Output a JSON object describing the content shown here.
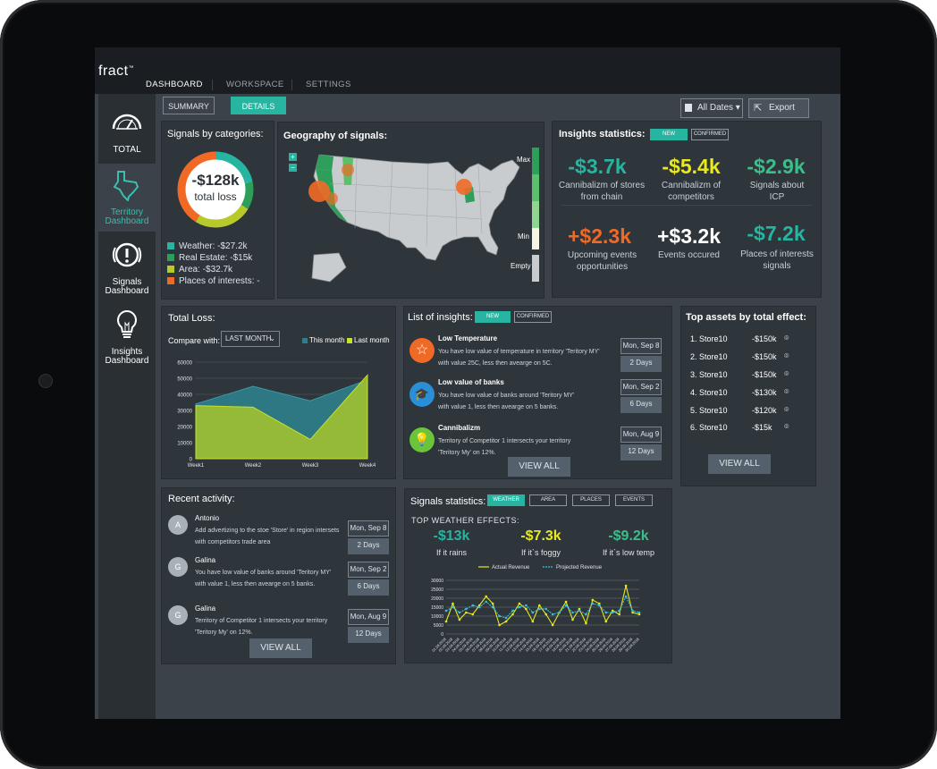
{
  "app": {
    "logo": "fract",
    "logo_tm": "™"
  },
  "top_tabs": [
    {
      "label": "DASHBOARD"
    },
    {
      "label": "WORKSPACE"
    },
    {
      "label": "SETTINGS"
    }
  ],
  "sidebar": {
    "items": [
      {
        "label": "TOTAL",
        "icon": "gauge-icon"
      },
      {
        "label": "Territory Dashboard",
        "icon": "texas-map-icon"
      },
      {
        "label": "Signals Dashboard",
        "icon": "warning-icon"
      },
      {
        "label": "Insights Dashboard",
        "icon": "lightbulb-icon"
      }
    ]
  },
  "subtabs": [
    {
      "label": "SUMMARY"
    },
    {
      "label": "DETAILS"
    }
  ],
  "toolbar": {
    "dates_label": "All Dates",
    "export_label": "Export"
  },
  "signals_by_categories": {
    "title": "Signals by categories:",
    "total_value": "-$128k",
    "total_label": "total loss",
    "legend": [
      {
        "label": "Weather: -$27.2k",
        "color": "#27b4a0"
      },
      {
        "label": "Real Estate: -$15k",
        "color": "#2e9e5b"
      },
      {
        "label": "Area: -$32.7k",
        "color": "#b8c92a"
      },
      {
        "label": "Places of interests: -",
        "color": "#f06a26"
      }
    ]
  },
  "geography": {
    "title": "Geography of signals:",
    "max_label": "Max",
    "min_label": "Min",
    "empty_label": "Empty",
    "zoom_in": "+",
    "zoom_out": "−"
  },
  "insights_statistics": {
    "title": "Insights statistics:",
    "tab_new": "NEW",
    "tab_confirmed": "CONFIRMED",
    "stats": [
      {
        "value": "-$3.7k",
        "label": "Cannibalizm of stores from chain",
        "color": "#27b4a0"
      },
      {
        "value": "-$5.4k",
        "label": "Cannibalizm of competitors",
        "color": "#e8e81e"
      },
      {
        "value": "-$2.9k",
        "label": "Signals about ICP",
        "color": "#3bbf8a"
      },
      {
        "value": "+$2.3k",
        "label": "Upcoming events opportunities",
        "color": "#f06a26"
      },
      {
        "value": "+$3.2k",
        "label": "Events occured",
        "color": "#ffffff"
      },
      {
        "value": "-$7.2k",
        "label": "Places of interests signals",
        "color": "#27b4a0"
      }
    ]
  },
  "total_loss": {
    "title": "Total Loss:",
    "compare_label": "Compare with:",
    "compare_value": "LAST MONTH",
    "legend_this": "This month",
    "legend_last": "Last month"
  },
  "chart_data": [
    {
      "type": "area",
      "categories": [
        "Week1",
        "Week2",
        "Week3",
        "Week4"
      ],
      "ylim": [
        0,
        60000
      ],
      "yticks": [
        "0",
        "10000",
        "20000",
        "30000",
        "40000",
        "50000",
        "60000"
      ],
      "series": [
        {
          "name": "This month",
          "values": [
            34000,
            45000,
            36000,
            49000
          ],
          "color": "#2e7f8c"
        },
        {
          "name": "Last month",
          "values": [
            33000,
            32000,
            12000,
            52000
          ],
          "color": "#a8c52c"
        }
      ],
      "grid": true
    },
    {
      "type": "line",
      "categories": [
        "01.09.2018",
        "02.09.2018",
        "03.09.2018",
        "04.09.2018",
        "05.09.2018",
        "06.09.2018",
        "07.09.2018",
        "08.09.2018",
        "09.09.2018",
        "10.09.2018",
        "11.09.2018",
        "12.09.2018",
        "13.09.2018",
        "14.09.2018",
        "15.09.2018",
        "16.09.2018",
        "17.09.2018",
        "18.09.2018",
        "19.09.2018",
        "20.09.2018",
        "21.09.2018",
        "22.09.2018",
        "23.09.2018",
        "24.09.2018",
        "25.09.2018",
        "26.09.2018",
        "27.09.2018",
        "28.09.2018",
        "29.09.2018",
        "30.09.2018"
      ],
      "ylim": [
        0,
        30000
      ],
      "yticks": [
        "0",
        "5000",
        "10000",
        "15000",
        "20000",
        "25000",
        "30000"
      ],
      "series": [
        {
          "name": "Actual Revenue",
          "color": "#e8e81e",
          "values": [
            7000,
            17000,
            8000,
            12000,
            11000,
            16000,
            21000,
            17000,
            5000,
            7000,
            11000,
            17000,
            14000,
            7000,
            16000,
            11000,
            5000,
            12000,
            18000,
            8000,
            14000,
            6000,
            19000,
            17000,
            7000,
            13000,
            11000,
            27000,
            12000,
            11000
          ]
        },
        {
          "name": "Projected Revenue",
          "color": "#3bbfd8",
          "values": [
            13000,
            15000,
            12000,
            14000,
            16000,
            15000,
            18000,
            15000,
            10000,
            9000,
            13000,
            15000,
            16000,
            12000,
            14000,
            14000,
            11000,
            12000,
            16000,
            12000,
            13000,
            11000,
            17000,
            16000,
            12000,
            12000,
            13000,
            21000,
            13000,
            12000
          ]
        }
      ],
      "grid": true
    }
  ],
  "list_of_insights": {
    "title": "List of insights:",
    "tab_new": "NEW",
    "tab_confirmed": "CONFIRMED",
    "items": [
      {
        "title": "Low Temperature",
        "desc1": "You have low value of temperature in territory 'Teritory MY'",
        "desc2": "with value 25C, less then avearge on 5C.",
        "date": "Mon, Sep 8",
        "days": "2 Days",
        "icon": "star-icon",
        "color": "#f06a26"
      },
      {
        "title": "Low value of banks",
        "desc1": "You have low value of banks around 'Teritory MY'",
        "desc2": "with value 1, less then avearge on 5 banks.",
        "date": "Mon, Sep 2",
        "days": "6 Days",
        "icon": "graduation-cap-icon",
        "color": "#2a8fd6"
      },
      {
        "title": "Cannibalizm",
        "desc1": "Territory of Competitor 1 intersects your territory",
        "desc2": "'Teritory My' on 12%.",
        "date": "Mon, Aug 9",
        "days": "12 Days",
        "icon": "lightbulb-icon",
        "color": "#6cc43a"
      }
    ],
    "view_all": "VIEW ALL"
  },
  "top_assets": {
    "title": "Top assets by total effect:",
    "rows": [
      {
        "rank": "1.",
        "name": "Store10",
        "value": "-$150k"
      },
      {
        "rank": "2.",
        "name": "Store10",
        "value": "-$150k"
      },
      {
        "rank": "3.",
        "name": "Store10",
        "value": "-$150k"
      },
      {
        "rank": "4.",
        "name": "Store10",
        "value": "-$130k"
      },
      {
        "rank": "5.",
        "name": "Store10",
        "value": "-$120k"
      },
      {
        "rank": "6.",
        "name": "Store10",
        "value": "-$15k"
      }
    ],
    "view_all": "VIEW ALL"
  },
  "recent_activity": {
    "title": "Recent activity:",
    "items": [
      {
        "initial": "A",
        "name": "Antonio",
        "desc1": "Add advertizing to the stoe 'Store' in region intersets",
        "desc2": "with competitors trade area",
        "date": "Mon, Sep 8",
        "days": "2 Days"
      },
      {
        "initial": "G",
        "name": "Galina",
        "desc1": "You have low value of banks around 'Teritory MY'",
        "desc2": "with value 1, less then avearge on 5 banks.",
        "date": "Mon, Sep 2",
        "days": "6 Days"
      },
      {
        "initial": "G",
        "name": "Galina",
        "desc1": "Territory of Competitor 1 intersects your territory",
        "desc2": "'Teritory My' on 12%.",
        "date": "Mon, Aug 9",
        "days": "12 Days"
      }
    ],
    "view_all": "VIEW ALL"
  },
  "signals_statistics": {
    "title": "Signals statistics:",
    "tabs": [
      "WEATHER",
      "AREA",
      "PLACES",
      "EVENTS"
    ],
    "subtitle": "TOP WEATHER EFFECTS:",
    "effects": [
      {
        "value": "-$13k",
        "label": "If it rains",
        "color": "#27b4a0"
      },
      {
        "value": "-$7.3k",
        "label": "If it`s foggy",
        "color": "#e8e81e"
      },
      {
        "value": "-$9.2k",
        "label": "If it`s low temp",
        "color": "#3bbf8a"
      }
    ]
  }
}
